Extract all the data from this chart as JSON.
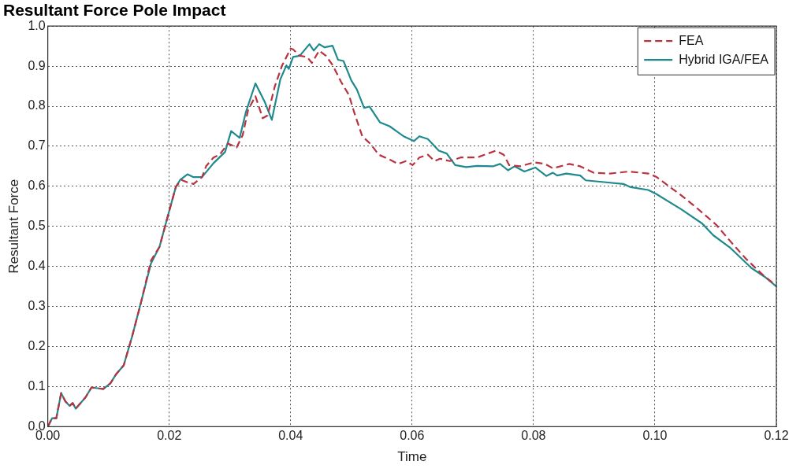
{
  "chart_data": {
    "type": "line",
    "title": "Resultant Force Pole Impact",
    "xlabel": "Time",
    "ylabel": "Resultant Force",
    "xlim": [
      0,
      0.12
    ],
    "ylim": [
      0,
      1.0
    ],
    "xticks": [
      {
        "value": 0,
        "label": "0.00"
      },
      0.02,
      0.04,
      0.06,
      0.08,
      {
        "value": 0.1,
        "label": "0.10"
      },
      0.12
    ],
    "yticks": [
      {
        "value": 0,
        "label": "0.0"
      },
      0.1,
      0.2,
      0.3,
      0.4,
      0.5,
      0.6,
      0.7,
      0.8,
      0.9,
      {
        "value": 1,
        "label": "1.0"
      }
    ],
    "grid": true,
    "legend": "top right",
    "marker": "none",
    "series": [
      {
        "name": "FEA",
        "color": "#b8323f",
        "line_style": "dashed",
        "x": [
          0,
          0.0007,
          0.0014,
          0.0022,
          0.0029,
          0.0036,
          0.0041,
          0.0046,
          0.0062,
          0.0072,
          0.0091,
          0.0103,
          0.0113,
          0.0125,
          0.0139,
          0.0153,
          0.017,
          0.0184,
          0.0199,
          0.0211,
          0.022,
          0.023,
          0.024,
          0.0254,
          0.0261,
          0.0273,
          0.0283,
          0.0297,
          0.0311,
          0.0321,
          0.033,
          0.0342,
          0.0354,
          0.0362,
          0.0374,
          0.0386,
          0.04,
          0.0404,
          0.0415,
          0.0427,
          0.0435,
          0.0447,
          0.0458,
          0.0469,
          0.0483,
          0.0496,
          0.0505,
          0.0518,
          0.0532,
          0.0545,
          0.0563,
          0.0577,
          0.059,
          0.0601,
          0.0612,
          0.0626,
          0.0637,
          0.0646,
          0.0662,
          0.068,
          0.0707,
          0.0738,
          0.0751,
          0.076,
          0.0778,
          0.0801,
          0.0819,
          0.0832,
          0.0859,
          0.0877,
          0.0899,
          0.0926,
          0.0957,
          0.0989,
          0.1002,
          0.1025,
          0.1043,
          0.1069,
          0.1101,
          0.1123,
          0.115,
          0.1177,
          0.12
        ],
        "values": [
          0,
          0.021,
          0.021,
          0.084,
          0.063,
          0.052,
          0.059,
          0.045,
          0.073,
          0.098,
          0.094,
          0.108,
          0.132,
          0.153,
          0.226,
          0.307,
          0.415,
          0.449,
          0.533,
          0.599,
          0.616,
          0.61,
          0.606,
          0.623,
          0.651,
          0.672,
          0.679,
          0.707,
          0.697,
          0.728,
          0.791,
          0.825,
          0.77,
          0.777,
          0.85,
          0.902,
          0.944,
          0.942,
          0.926,
          0.923,
          0.908,
          0.939,
          0.926,
          0.903,
          0.861,
          0.828,
          0.783,
          0.725,
          0.705,
          0.679,
          0.667,
          0.656,
          0.663,
          0.653,
          0.672,
          0.679,
          0.663,
          0.669,
          0.663,
          0.672,
          0.672,
          0.689,
          0.679,
          0.653,
          0.65,
          0.66,
          0.656,
          0.645,
          0.656,
          0.65,
          0.634,
          0.632,
          0.637,
          0.632,
          0.624,
          0.598,
          0.578,
          0.546,
          0.504,
          0.465,
          0.419,
          0.38,
          0.352
        ]
      },
      {
        "name": "Hybrid IGA/FEA",
        "color": "#1f8a8e",
        "line_style": "solid",
        "x": [
          0,
          0.0007,
          0.0014,
          0.0022,
          0.0029,
          0.0036,
          0.0041,
          0.0046,
          0.0062,
          0.0072,
          0.0091,
          0.0103,
          0.0113,
          0.0125,
          0.0139,
          0.0153,
          0.017,
          0.0184,
          0.0199,
          0.0211,
          0.0218,
          0.023,
          0.024,
          0.0254,
          0.0273,
          0.0292,
          0.0302,
          0.0316,
          0.0326,
          0.0342,
          0.0357,
          0.0369,
          0.0383,
          0.0393,
          0.0397,
          0.0404,
          0.0415,
          0.0431,
          0.0438,
          0.0447,
          0.0456,
          0.0469,
          0.0478,
          0.0487,
          0.05,
          0.0509,
          0.0521,
          0.053,
          0.0547,
          0.0563,
          0.0586,
          0.0603,
          0.0612,
          0.0626,
          0.0644,
          0.0657,
          0.0671,
          0.0689,
          0.0707,
          0.0733,
          0.0745,
          0.0758,
          0.0769,
          0.0785,
          0.0803,
          0.0821,
          0.0832,
          0.0839,
          0.0854,
          0.0877,
          0.0886,
          0.0913,
          0.0948,
          0.096,
          0.0989,
          0.1002,
          0.1043,
          0.1078,
          0.1096,
          0.1123,
          0.1159,
          0.1181,
          0.12
        ],
        "values": [
          0,
          0.021,
          0.021,
          0.084,
          0.063,
          0.052,
          0.059,
          0.045,
          0.073,
          0.098,
          0.094,
          0.108,
          0.132,
          0.153,
          0.226,
          0.307,
          0.408,
          0.449,
          0.533,
          0.599,
          0.616,
          0.63,
          0.623,
          0.623,
          0.658,
          0.686,
          0.738,
          0.721,
          0.784,
          0.857,
          0.812,
          0.766,
          0.867,
          0.902,
          0.893,
          0.923,
          0.926,
          0.955,
          0.939,
          0.955,
          0.947,
          0.951,
          0.916,
          0.913,
          0.864,
          0.842,
          0.796,
          0.799,
          0.76,
          0.75,
          0.725,
          0.713,
          0.725,
          0.718,
          0.689,
          0.682,
          0.653,
          0.648,
          0.651,
          0.65,
          0.656,
          0.64,
          0.65,
          0.637,
          0.647,
          0.626,
          0.634,
          0.627,
          0.632,
          0.627,
          0.615,
          0.611,
          0.606,
          0.598,
          0.591,
          0.581,
          0.543,
          0.507,
          0.478,
          0.448,
          0.396,
          0.374,
          0.35
        ]
      }
    ]
  }
}
